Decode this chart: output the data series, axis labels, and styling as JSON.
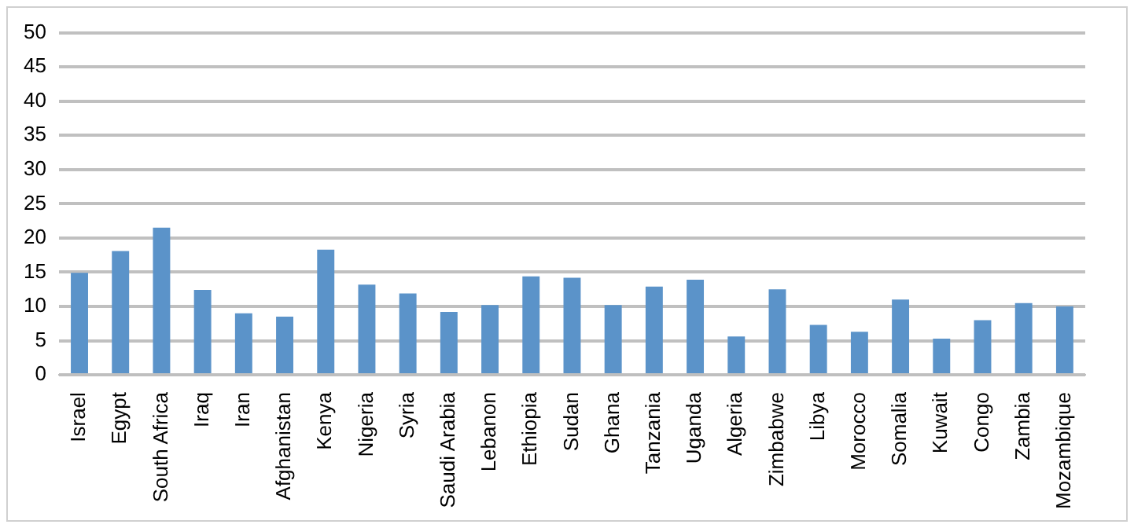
{
  "chart_data": {
    "type": "bar",
    "categories": [
      "Israel",
      "Egypt",
      "South Africa",
      "Iraq",
      "Iran",
      "Afghanistan",
      "Kenya",
      "Nigeria",
      "Syria",
      "Saudi Arabia",
      "Lebanon",
      "Ethiopia",
      "Sudan",
      "Ghana",
      "Tanzania",
      "Uganda",
      "Algeria",
      "Zimbabwe",
      "Libya",
      "Morocco",
      "Somalia",
      "Kuwait",
      "Congo",
      "Zambia",
      "Mozambique"
    ],
    "values": [
      14.9,
      18.1,
      21.5,
      12.4,
      9.0,
      8.5,
      18.3,
      13.2,
      11.9,
      9.2,
      10.2,
      14.4,
      14.2,
      10.2,
      12.9,
      13.9,
      5.6,
      12.5,
      7.3,
      6.3,
      11.0,
      5.3,
      8.0,
      10.5,
      10.0
    ],
    "color": "#5b93c9",
    "ylim": [
      0,
      50
    ],
    "yticks": [
      0,
      5,
      10,
      15,
      20,
      25,
      30,
      35,
      40,
      45,
      50
    ],
    "grid": "y",
    "legend": false
  }
}
